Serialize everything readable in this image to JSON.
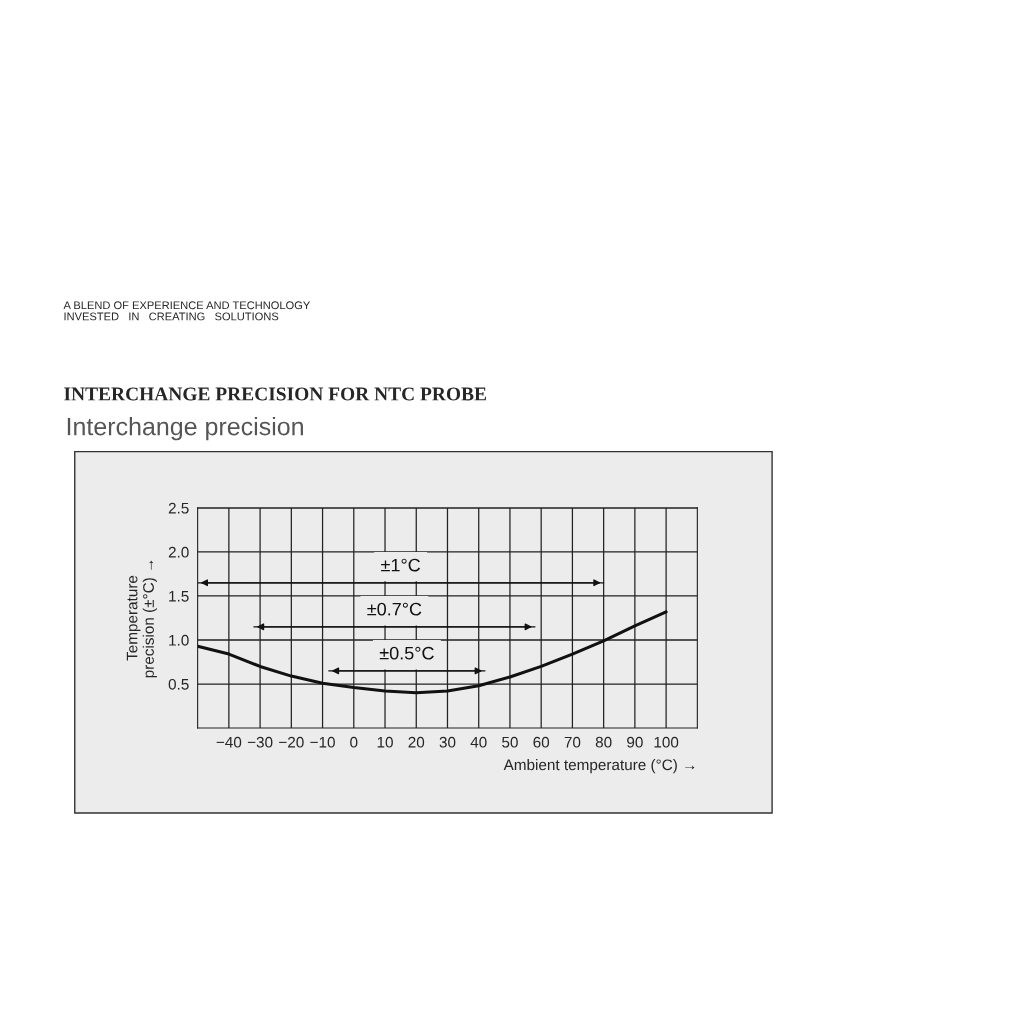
{
  "chart_data": {
    "type": "line",
    "title": "INTERCHANGE PRECISION FOR NTC PROBE",
    "subtitle": "Interchange precision",
    "xlabel": "Ambient temperature (°C) →",
    "ylabel": "Temperature\nprecision (±°C) →",
    "annotations": [
      "A BLEND OF EXPERIENCE AND TECHNOLOGY\nINVESTED   IN   CREATING   SOLUTIONS"
    ],
    "x": [
      -50,
      -40,
      -30,
      -20,
      -10,
      0,
      10,
      20,
      30,
      40,
      50,
      60,
      70,
      80,
      90,
      100
    ],
    "series": [
      {
        "color": "#111111",
        "values": [
          0.93,
          0.84,
          0.7,
          0.59,
          0.51,
          0.46,
          0.42,
          0.4,
          0.42,
          0.48,
          0.58,
          0.7,
          0.84,
          0.99,
          1.16,
          1.32
        ]
      },
      {
        "name": "±1°C",
        "color": "#111111",
        "x": [
          -50,
          80
        ],
        "values": [
          1.65,
          1.65
        ]
      },
      {
        "name": "±0.7°C",
        "color": "#111111",
        "x": [
          -32,
          58
        ],
        "values": [
          1.15,
          1.15
        ]
      },
      {
        "name": "±0.5°C",
        "color": "#111111",
        "x": [
          -8,
          42
        ],
        "values": [
          0.65,
          0.65
        ]
      }
    ],
    "xlim": [
      -50,
      110
    ],
    "ylim": [
      0,
      2.5
    ],
    "xticks": [
      {
        "value": -40,
        "label": "−40"
      },
      {
        "value": -30,
        "label": "−30"
      },
      {
        "value": -20,
        "label": "−20"
      },
      {
        "value": -10,
        "label": "−10"
      },
      0,
      10,
      20,
      30,
      40,
      50,
      60,
      70,
      80,
      90,
      100
    ],
    "yticks": [
      {
        "value": 0.5,
        "label": "0.5"
      },
      {
        "value": 1.0,
        "label": "1.0"
      },
      {
        "value": 1.5,
        "label": "1.5"
      },
      {
        "value": 2.0,
        "label": "2.0"
      },
      {
        "value": 2.5,
        "label": "2.5"
      }
    ],
    "grid": true,
    "line_style": "solid"
  }
}
